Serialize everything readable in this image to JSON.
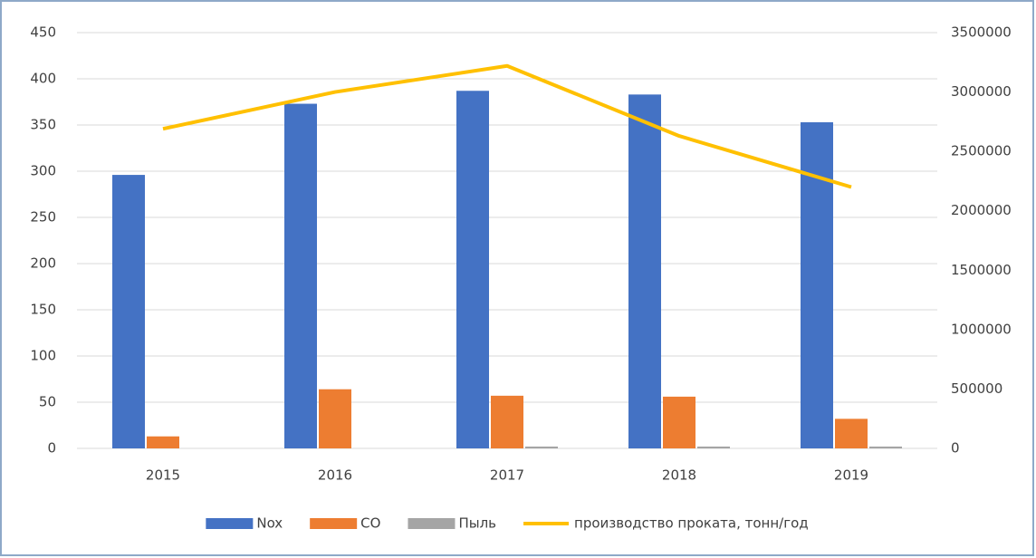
{
  "chart_data": {
    "type": "bar",
    "categories": [
      "2015",
      "2016",
      "2017",
      "2018",
      "2019"
    ],
    "series": [
      {
        "name": "Nox",
        "color": "#4472c4",
        "values": [
          296,
          373,
          387,
          383,
          353
        ]
      },
      {
        "name": "CO",
        "color": "#ed7d31",
        "values": [
          13,
          64,
          57,
          56,
          32
        ]
      },
      {
        "name": "Пыль",
        "color": "#a5a5a5",
        "values": [
          0,
          0,
          2,
          2,
          2
        ]
      },
      {
        "name": "производство проката, тонн/год",
        "color": "#ffc000",
        "type": "line",
        "axis": "y2",
        "values": [
          2690000,
          3000000,
          3220000,
          2630000,
          2200000
        ]
      }
    ],
    "ylim": [
      0,
      450
    ],
    "yticks": [
      0,
      50,
      100,
      150,
      200,
      250,
      300,
      350,
      400,
      450
    ],
    "y2lim": [
      0,
      3500000
    ],
    "y2ticks": [
      0,
      500000,
      1000000,
      1500000,
      2000000,
      2500000,
      3000000,
      3500000
    ],
    "grid": true,
    "legend": "bottom"
  }
}
